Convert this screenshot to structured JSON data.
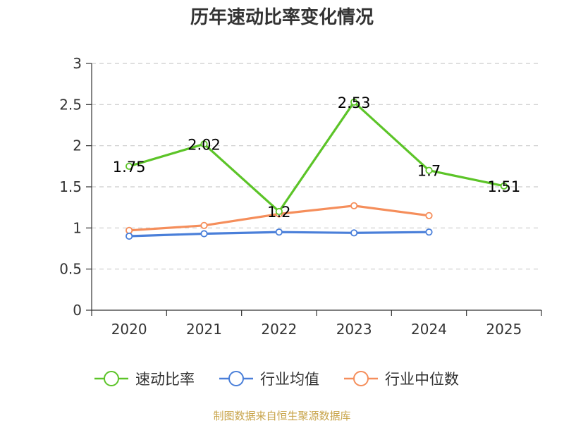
{
  "chart_data": {
    "type": "line",
    "title": "历年速动比率变化情况",
    "categories": [
      "2020",
      "2021",
      "2022",
      "2023",
      "2024",
      "2025"
    ],
    "ylim": [
      0,
      3
    ],
    "yticks": [
      0,
      0.5,
      1,
      1.5,
      2,
      2.5,
      3
    ],
    "grid": true,
    "legend_position": "bottom",
    "series": [
      {
        "name": "速动比率",
        "color": "#5cc428",
        "values": [
          1.75,
          2.02,
          1.2,
          2.53,
          1.7,
          1.51
        ],
        "labels": [
          "1.75",
          "2.02",
          "1.2",
          "2.53",
          "1.7",
          "1.51"
        ]
      },
      {
        "name": "行业均值",
        "color": "#4a7fd9",
        "values": [
          0.9,
          0.93,
          0.95,
          0.94,
          0.95,
          null
        ]
      },
      {
        "name": "行业中位数",
        "color": "#f58e5b",
        "values": [
          0.97,
          1.03,
          1.17,
          1.27,
          1.15,
          null
        ]
      }
    ],
    "source": "制图数据来自恒生聚源数据库"
  }
}
